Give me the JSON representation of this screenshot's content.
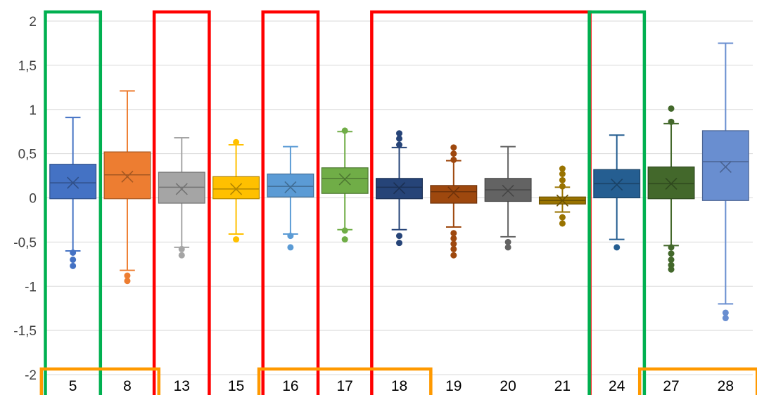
{
  "chart_data": {
    "type": "box",
    "title": "",
    "xlabel": "",
    "ylabel": "",
    "ylim": [
      -2,
      2
    ],
    "y_tick_labels": [
      "2",
      "1,5",
      "1",
      "0,5",
      "0",
      "-0,5",
      "-1",
      "-1,5",
      "-2"
    ],
    "y_tick_values": [
      2,
      1.5,
      1,
      0.5,
      0,
      -0.5,
      -1,
      -1.5,
      -2
    ],
    "grid": true,
    "categories": [
      "5",
      "8",
      "13",
      "15",
      "16",
      "17",
      "18",
      "19",
      "20",
      "21",
      "24",
      "27",
      "28"
    ],
    "boxes": [
      {
        "category": "5",
        "whisker_low": -0.6,
        "q1": -0.01,
        "median": 0.17,
        "mean": 0.17,
        "q3": 0.38,
        "whisker_high": 0.91,
        "outliers": [
          -0.62,
          -0.7,
          -0.77
        ],
        "color": "#4472C4"
      },
      {
        "category": "8",
        "whisker_low": -0.82,
        "q1": -0.01,
        "median": 0.26,
        "mean": 0.24,
        "q3": 0.52,
        "whisker_high": 1.21,
        "outliers": [
          -0.88,
          -0.94
        ],
        "color": "#ED7D31"
      },
      {
        "category": "13",
        "whisker_low": -0.56,
        "q1": -0.06,
        "median": 0.12,
        "mean": 0.1,
        "q3": 0.29,
        "whisker_high": 0.68,
        "outliers": [
          -0.58,
          -0.65
        ],
        "color": "#A5A5A5"
      },
      {
        "category": "15",
        "whisker_low": -0.41,
        "q1": -0.01,
        "median": 0.1,
        "mean": 0.1,
        "q3": 0.24,
        "whisker_high": 0.6,
        "outliers": [
          -0.47,
          0.63
        ],
        "color": "#FFC000"
      },
      {
        "category": "16",
        "whisker_low": -0.41,
        "q1": 0.01,
        "median": 0.13,
        "mean": 0.12,
        "q3": 0.27,
        "whisker_high": 0.58,
        "outliers": [
          -0.43,
          -0.56
        ],
        "color": "#5B9BD5"
      },
      {
        "category": "17",
        "whisker_low": -0.36,
        "q1": 0.05,
        "median": 0.22,
        "mean": 0.21,
        "q3": 0.34,
        "whisker_high": 0.75,
        "outliers": [
          -0.37,
          -0.47,
          0.76
        ],
        "color": "#70AD47"
      },
      {
        "category": "18",
        "whisker_low": -0.36,
        "q1": -0.01,
        "median": 0.12,
        "mean": 0.11,
        "q3": 0.22,
        "whisker_high": 0.57,
        "outliers": [
          -0.43,
          -0.51,
          0.6,
          0.67,
          0.73
        ],
        "color": "#264478"
      },
      {
        "category": "19",
        "whisker_low": -0.33,
        "q1": -0.06,
        "median": 0.07,
        "mean": 0.06,
        "q3": 0.14,
        "whisker_high": 0.42,
        "outliers": [
          -0.4,
          -0.46,
          -0.52,
          -0.58,
          -0.65,
          0.43,
          0.5,
          0.57
        ],
        "color": "#9E480E"
      },
      {
        "category": "20",
        "whisker_low": -0.44,
        "q1": -0.04,
        "median": 0.09,
        "mean": 0.08,
        "q3": 0.22,
        "whisker_high": 0.58,
        "outliers": [
          -0.5,
          -0.56
        ],
        "color": "#636363"
      },
      {
        "category": "21",
        "whisker_low": -0.16,
        "q1": -0.07,
        "median": -0.03,
        "mean": -0.03,
        "q3": 0.01,
        "whisker_high": 0.12,
        "outliers": [
          -0.22,
          -0.29,
          0.13,
          0.2,
          0.27,
          0.33
        ],
        "color": "#997300"
      },
      {
        "category": "24",
        "whisker_low": -0.47,
        "q1": 0.0,
        "median": 0.16,
        "mean": 0.15,
        "q3": 0.32,
        "whisker_high": 0.71,
        "outliers": [
          -0.56
        ],
        "color": "#255E91"
      },
      {
        "category": "27",
        "whisker_low": -0.54,
        "q1": -0.01,
        "median": 0.16,
        "mean": 0.16,
        "q3": 0.35,
        "whisker_high": 0.84,
        "outliers": [
          -0.56,
          -0.63,
          -0.7,
          -0.76,
          -0.81,
          0.86,
          1.01
        ],
        "color": "#43682B"
      },
      {
        "category": "28",
        "whisker_low": -1.2,
        "q1": -0.03,
        "median": 0.41,
        "mean": 0.35,
        "q3": 0.76,
        "whisker_high": 1.75,
        "outliers": [
          -1.3,
          -1.36
        ],
        "color": "#698ED0"
      }
    ],
    "highlight_frames": [
      {
        "color": "#00B050",
        "from_category": "5",
        "to_category": "5"
      },
      {
        "color": "#FF0000",
        "from_category": "13",
        "to_category": "13"
      },
      {
        "color": "#FF0000",
        "from_category": "16",
        "to_category": "16"
      },
      {
        "color": "#FF0000",
        "from_category": "18",
        "to_category": "21"
      },
      {
        "color": "#00B050",
        "from_category": "24",
        "to_category": "24"
      }
    ],
    "label_highlights": [
      {
        "color": "#FF9900",
        "categories": [
          "5",
          "8"
        ]
      },
      {
        "color": "#FF9900",
        "categories": [
          "16",
          "17",
          "18"
        ]
      },
      {
        "color": "#FF9900",
        "categories": [
          "27",
          "28"
        ]
      }
    ]
  }
}
